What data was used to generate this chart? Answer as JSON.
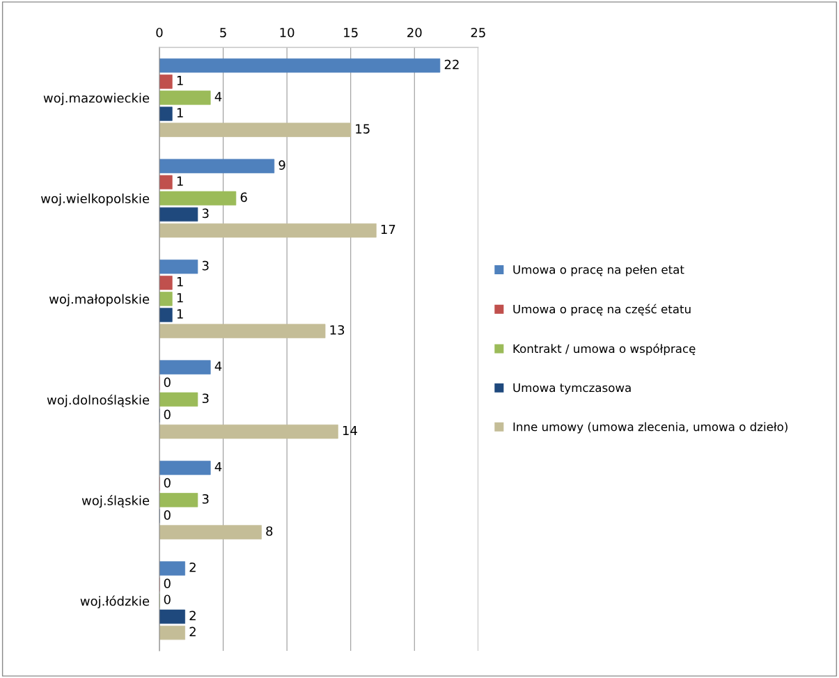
{
  "chart_data": {
    "type": "bar",
    "orientation": "horizontal",
    "categories": [
      "woj.mazowieckie",
      "woj.wielkopolskie",
      "woj.małopolskie",
      "woj.dolnośląskie",
      "woj.śląskie",
      "woj.łódzkie"
    ],
    "series": [
      {
        "name": "Umowa o pracę na pełen etat",
        "color": "#4f81bd",
        "values": [
          22,
          9,
          3,
          4,
          4,
          2
        ]
      },
      {
        "name": "Umowa o pracę na część etatu",
        "color": "#c0504d",
        "values": [
          1,
          1,
          1,
          0,
          0,
          0
        ]
      },
      {
        "name": "Kontrakt / umowa o współpracę",
        "color": "#9bbb59",
        "values": [
          4,
          6,
          1,
          3,
          3,
          0
        ]
      },
      {
        "name": "Umowa tymczasowa",
        "color": "#1f497d",
        "values": [
          1,
          3,
          1,
          0,
          0,
          2
        ]
      },
      {
        "name": "Inne umowy (umowa zlecenia, umowa o dzieło)",
        "color": "#c4bd97",
        "values": [
          15,
          17,
          13,
          14,
          8,
          2
        ]
      }
    ],
    "xlim": [
      0,
      25
    ],
    "xticks": [
      0,
      5,
      10,
      15,
      20,
      25
    ],
    "grid": "x",
    "legend": "right",
    "data_labels": true
  }
}
